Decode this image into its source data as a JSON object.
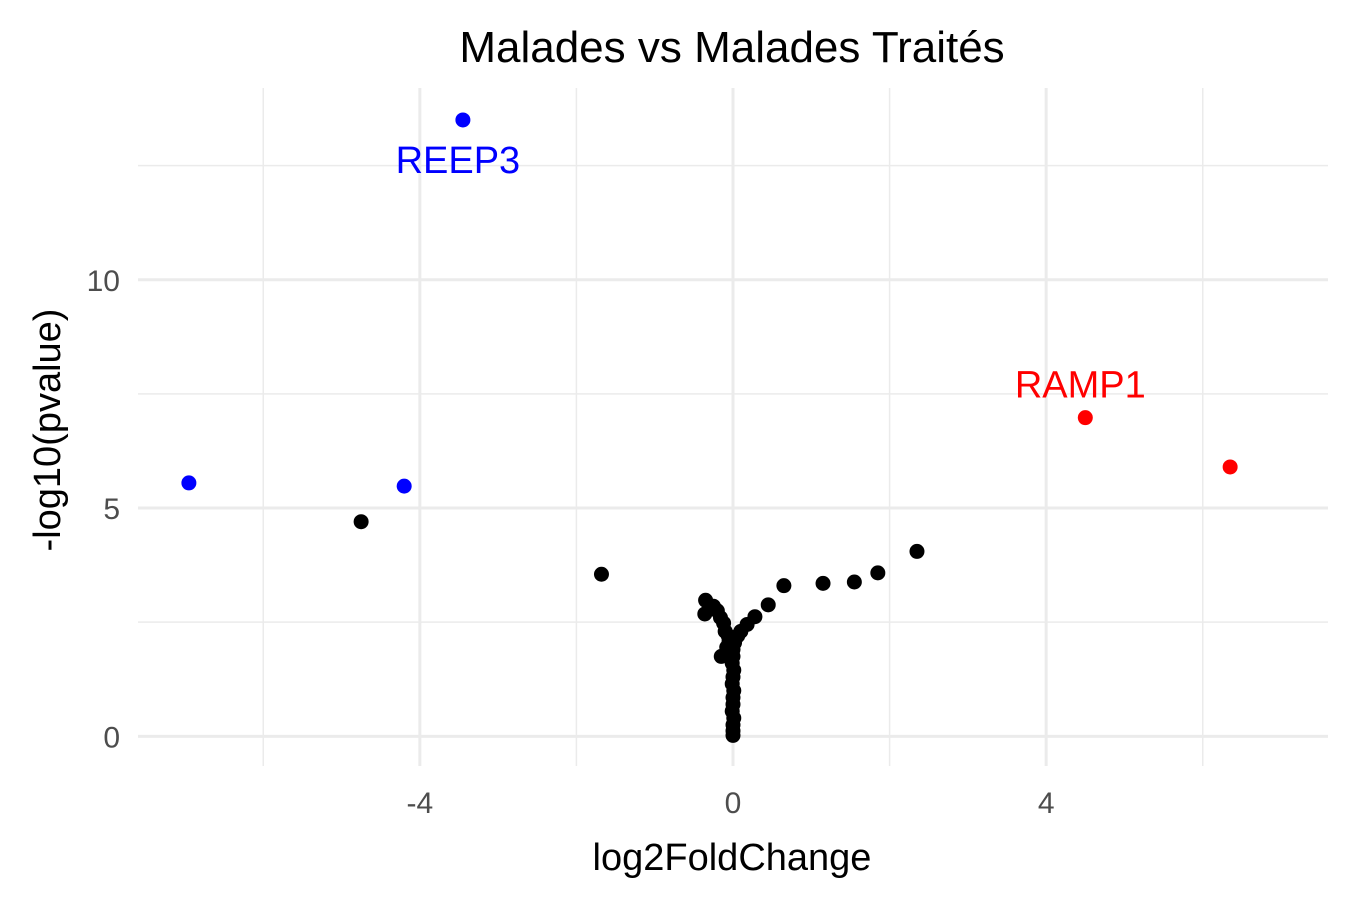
{
  "chart_data": {
    "type": "scatter",
    "title": "Malades vs Malades Traités",
    "xlabel": "log2FoldChange",
    "ylabel": "-log10(pvalue)",
    "xlim": [
      -7.6,
      7.6
    ],
    "ylim": [
      -0.65,
      14.2
    ],
    "xticks": [
      -4,
      0,
      4
    ],
    "yticks": [
      0,
      5,
      10
    ],
    "x_minor_ticks": [
      -6,
      -2,
      2,
      6
    ],
    "y_minor_ticks": [
      2.5,
      7.5,
      12.5
    ],
    "grid": true,
    "legend": "none",
    "colors": {
      "down": "#0000ff",
      "up": "#ff0000",
      "ns": "#000000",
      "grid": "#ebebeb"
    },
    "series": [
      {
        "group": "down",
        "color": "#0000ff",
        "points": [
          {
            "x": -3.45,
            "y": 13.5,
            "label": "REEP3"
          },
          {
            "x": -6.95,
            "y": 5.55
          },
          {
            "x": -4.2,
            "y": 5.48
          }
        ]
      },
      {
        "group": "up",
        "color": "#ff0000",
        "points": [
          {
            "x": 4.5,
            "y": 6.98,
            "label": "RAMP1"
          },
          {
            "x": 6.35,
            "y": 5.9
          }
        ]
      },
      {
        "group": "ns",
        "color": "#000000",
        "points": [
          {
            "x": -4.75,
            "y": 4.7
          },
          {
            "x": -1.68,
            "y": 3.55
          },
          {
            "x": 2.35,
            "y": 4.05
          },
          {
            "x": 1.85,
            "y": 3.58
          },
          {
            "x": 1.55,
            "y": 3.38
          },
          {
            "x": 1.15,
            "y": 3.35
          },
          {
            "x": 0.65,
            "y": 3.3
          },
          {
            "x": 0.45,
            "y": 2.88
          },
          {
            "x": 0.28,
            "y": 2.62
          },
          {
            "x": 0.18,
            "y": 2.45
          },
          {
            "x": 0.1,
            "y": 2.3
          },
          {
            "x": 0.06,
            "y": 2.2
          },
          {
            "x": -0.35,
            "y": 2.98
          },
          {
            "x": -0.36,
            "y": 2.68
          },
          {
            "x": -0.25,
            "y": 2.85
          },
          {
            "x": -0.2,
            "y": 2.75
          },
          {
            "x": -0.16,
            "y": 2.6
          },
          {
            "x": -0.12,
            "y": 2.48
          },
          {
            "x": -0.1,
            "y": 2.3
          },
          {
            "x": -0.06,
            "y": 2.2
          },
          {
            "x": -0.15,
            "y": 1.75
          },
          {
            "x": -0.08,
            "y": 1.95
          },
          {
            "x": -0.05,
            "y": 2.08
          },
          {
            "x": 0.02,
            "y": 2.05
          },
          {
            "x": 0.0,
            "y": 1.9
          },
          {
            "x": 0.0,
            "y": 1.75
          },
          {
            "x": -0.01,
            "y": 1.6
          },
          {
            "x": 0.01,
            "y": 1.45
          },
          {
            "x": 0.0,
            "y": 1.3
          },
          {
            "x": -0.01,
            "y": 1.15
          },
          {
            "x": 0.01,
            "y": 1.0
          },
          {
            "x": 0.0,
            "y": 0.85
          },
          {
            "x": 0.0,
            "y": 0.7
          },
          {
            "x": -0.01,
            "y": 0.55
          },
          {
            "x": 0.01,
            "y": 0.4
          },
          {
            "x": 0.0,
            "y": 0.25
          },
          {
            "x": 0.0,
            "y": 0.12
          },
          {
            "x": 0.0,
            "y": 0.02
          }
        ]
      }
    ]
  }
}
